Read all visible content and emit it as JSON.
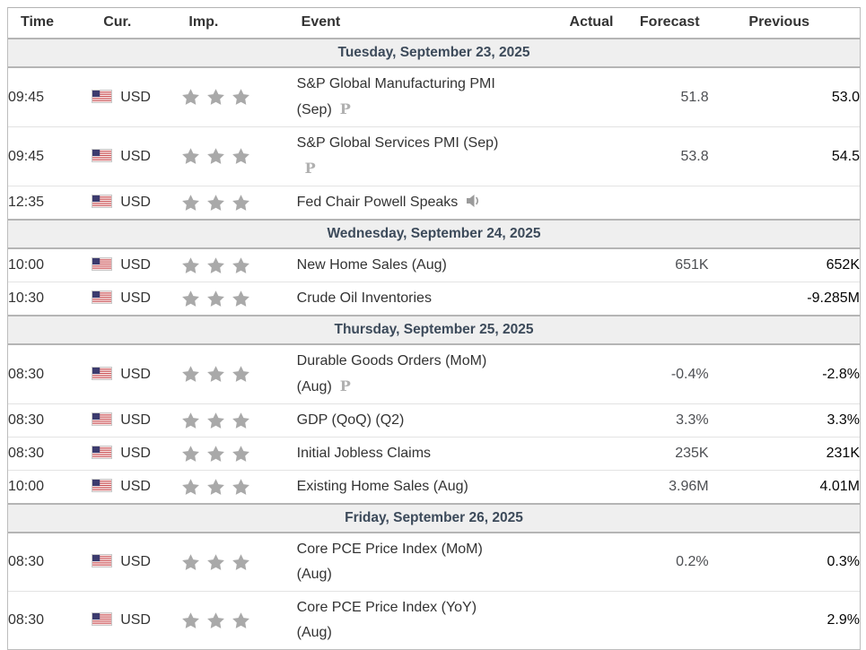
{
  "colors": {
    "day_header_bg": "#efefef",
    "day_header_text": "#3c4a5a",
    "star_gray": "#a9a9a9",
    "forecast_text": "#4d4f53",
    "previous_text": "#050505",
    "row_border": "#e3e3e3",
    "section_border": "#b5b5b5"
  },
  "table": {
    "columns": [
      "Time",
      "Cur.",
      "Imp.",
      "Event",
      "Actual",
      "Forecast",
      "Previous"
    ],
    "icons": {
      "preliminary_glyph": "P",
      "speech_icon_name": "speaker-icon",
      "flag_icon_name": "us-flag-icon",
      "importance_icon_name": "star-icon"
    },
    "sections": [
      {
        "date": "Tuesday, September 23, 2025",
        "rows": [
          {
            "time": "09:45",
            "currency": "USD",
            "importance": 3,
            "event_lines": [
              "S&P Global Manufacturing PMI",
              "(Sep)"
            ],
            "event_icon": "preliminary",
            "icon_new_line": false,
            "actual": "",
            "forecast": "51.8",
            "previous": "53.0"
          },
          {
            "time": "09:45",
            "currency": "USD",
            "importance": 3,
            "event_lines": [
              "S&P Global Services PMI (Sep)"
            ],
            "event_icon": "preliminary",
            "icon_new_line": true,
            "actual": "",
            "forecast": "53.8",
            "previous": "54.5"
          },
          {
            "time": "12:35",
            "currency": "USD",
            "importance": 3,
            "event_lines": [
              "Fed Chair Powell Speaks"
            ],
            "event_icon": "speech",
            "icon_new_line": false,
            "actual": "",
            "forecast": "",
            "previous": ""
          }
        ]
      },
      {
        "date": "Wednesday, September 24, 2025",
        "rows": [
          {
            "time": "10:00",
            "currency": "USD",
            "importance": 3,
            "event_lines": [
              "New Home Sales (Aug)"
            ],
            "event_icon": null,
            "icon_new_line": false,
            "actual": "",
            "forecast": "651K",
            "previous": "652K"
          },
          {
            "time": "10:30",
            "currency": "USD",
            "importance": 3,
            "event_lines": [
              "Crude Oil Inventories"
            ],
            "event_icon": null,
            "icon_new_line": false,
            "actual": "",
            "forecast": "",
            "previous": "-9.285M"
          }
        ]
      },
      {
        "date": "Thursday, September 25, 2025",
        "rows": [
          {
            "time": "08:30",
            "currency": "USD",
            "importance": 3,
            "event_lines": [
              "Durable Goods Orders (MoM)",
              "(Aug)"
            ],
            "event_icon": "preliminary",
            "icon_new_line": false,
            "actual": "",
            "forecast": "-0.4%",
            "previous": "-2.8%"
          },
          {
            "time": "08:30",
            "currency": "USD",
            "importance": 3,
            "event_lines": [
              "GDP (QoQ) (Q2)"
            ],
            "event_icon": null,
            "icon_new_line": false,
            "actual": "",
            "forecast": "3.3%",
            "previous": "3.3%"
          },
          {
            "time": "08:30",
            "currency": "USD",
            "importance": 3,
            "event_lines": [
              "Initial Jobless Claims"
            ],
            "event_icon": null,
            "icon_new_line": false,
            "actual": "",
            "forecast": "235K",
            "previous": "231K"
          },
          {
            "time": "10:00",
            "currency": "USD",
            "importance": 3,
            "event_lines": [
              "Existing Home Sales (Aug)"
            ],
            "event_icon": null,
            "icon_new_line": false,
            "actual": "",
            "forecast": "3.96M",
            "previous": "4.01M"
          }
        ]
      },
      {
        "date": "Friday, September 26, 2025",
        "rows": [
          {
            "time": "08:30",
            "currency": "USD",
            "importance": 3,
            "event_lines": [
              "Core PCE Price Index (MoM)",
              "(Aug)"
            ],
            "event_icon": null,
            "icon_new_line": false,
            "actual": "",
            "forecast": "0.2%",
            "previous": "0.3%"
          },
          {
            "time": "08:30",
            "currency": "USD",
            "importance": 3,
            "event_lines": [
              "Core PCE Price Index (YoY)",
              "(Aug)"
            ],
            "event_icon": null,
            "icon_new_line": false,
            "actual": "",
            "forecast": "",
            "previous": "2.9%"
          }
        ]
      }
    ]
  }
}
